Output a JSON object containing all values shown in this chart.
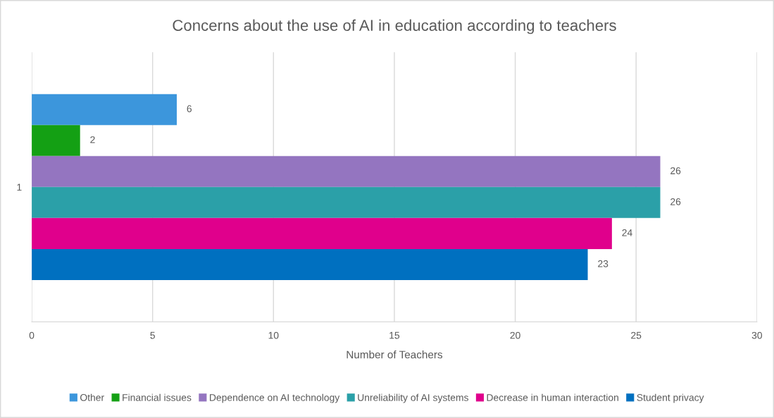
{
  "chart_data": {
    "type": "bar",
    "orientation": "horizontal",
    "title": "Concerns about the use of AI in education according to teachers",
    "xlabel": "Number of Teachers",
    "categories": [
      "1"
    ],
    "series": [
      {
        "name": "Other",
        "color": "#3c96dc",
        "values": [
          6
        ]
      },
      {
        "name": "Financial issues",
        "color": "#14a014",
        "values": [
          2
        ]
      },
      {
        "name": "Dependence on AI technology",
        "color": "#9475c0",
        "values": [
          26
        ]
      },
      {
        "name": "Unreliability of AI systems",
        "color": "#2ba0a8",
        "values": [
          26
        ]
      },
      {
        "name": "Decrease in human interaction",
        "color": "#e0008c",
        "values": [
          24
        ]
      },
      {
        "name": "Student privacy",
        "color": "#0070c0",
        "values": [
          23
        ]
      }
    ],
    "xlim": [
      0,
      30
    ],
    "xticks": [
      0,
      5,
      10,
      15,
      20,
      25,
      30
    ],
    "grid": "x",
    "data_labels": true,
    "legend": "bottom"
  }
}
